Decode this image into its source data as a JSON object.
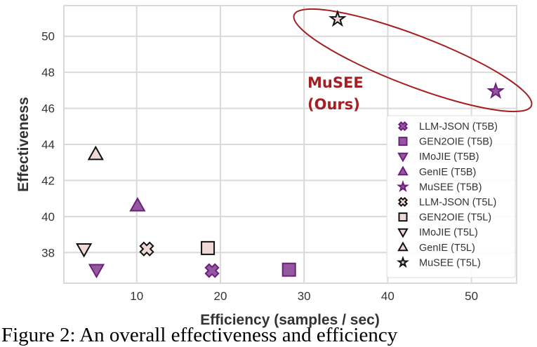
{
  "chart_data": {
    "type": "scatter",
    "xlabel": "Efficiency (samples / sec)",
    "ylabel": "Effectiveness",
    "xlim": [
      1.3,
      55.4
    ],
    "ylim": [
      36.3,
      51.7
    ],
    "xticks": [
      10,
      20,
      30,
      40,
      50
    ],
    "yticks": [
      38,
      40,
      42,
      44,
      46,
      48,
      50
    ],
    "grid": true,
    "legend_position": "bottom-right",
    "colors": {
      "t5b_fill": "#94589e",
      "t5b_edge": "#6e1f7e",
      "t5l_fill": "#efd9d6",
      "t5l_edge": "#111111",
      "annotation": "#a51f22",
      "grid": "#d9d9d9"
    },
    "series": [
      {
        "name": "LLM-JSON (T5B)",
        "marker": "x-filled",
        "group": "t5b",
        "x": 19.0,
        "y": 37.0
      },
      {
        "name": "GEN2OIE (T5B)",
        "marker": "square",
        "group": "t5b",
        "x": 28.2,
        "y": 37.05
      },
      {
        "name": "IMoJIE (T5B)",
        "marker": "triangle-down",
        "group": "t5b",
        "x": 5.2,
        "y": 37.05
      },
      {
        "name": "GenIE (T5B)",
        "marker": "triangle-up",
        "group": "t5b",
        "x": 10.1,
        "y": 40.6
      },
      {
        "name": "MuSEE (T5B)",
        "marker": "star",
        "group": "t5b",
        "x": 52.9,
        "y": 46.95
      },
      {
        "name": "LLM-JSON (T5L)",
        "marker": "x-filled",
        "group": "t5l",
        "x": 11.2,
        "y": 38.2
      },
      {
        "name": "GEN2OIE (T5L)",
        "marker": "square",
        "group": "t5l",
        "x": 18.5,
        "y": 38.25
      },
      {
        "name": "IMoJIE (T5L)",
        "marker": "triangle-down",
        "group": "t5l",
        "x": 3.7,
        "y": 38.2
      },
      {
        "name": "GenIE (T5L)",
        "marker": "triangle-up",
        "group": "t5l",
        "x": 5.1,
        "y": 43.45
      },
      {
        "name": "MuSEE (T5L)",
        "marker": "star",
        "group": "t5l",
        "x": 34.0,
        "y": 50.95
      }
    ],
    "annotation": {
      "line1": "MuSEE",
      "line2": "(Ours)",
      "shape": "ellipse around MuSEE points"
    }
  },
  "caption": "Figure 2: An overall effectiveness and efficiency"
}
